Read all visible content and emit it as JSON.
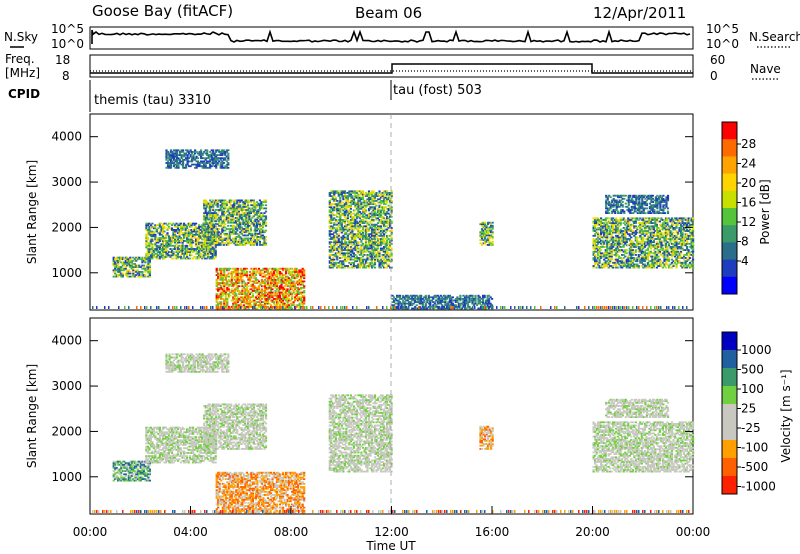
{
  "header": {
    "station": "Goose Bay (fitACF)",
    "beam": "Beam 06",
    "date": "12/Apr/2011"
  },
  "left_labels": {
    "nsky": "N.Sky",
    "freq_line1": "Freq.",
    "freq_line2": "[MHz]",
    "cpid": "CPID"
  },
  "right_labels": {
    "nsearch": "N.Search",
    "nave": "Nave"
  },
  "noise_ticks_left": [
    "10^5",
    "10^0"
  ],
  "noise_ticks_right": [
    "10^5",
    "10^0"
  ],
  "freq_ticks_left": [
    "18",
    "8"
  ],
  "nave_ticks_right": [
    "60",
    "0"
  ],
  "cpid_labels": [
    {
      "text": "themis (tau) 3310",
      "start_hour": 0
    },
    {
      "text": "tau (fost) 503",
      "start_hour": 12
    }
  ],
  "power_colorbar": {
    "label": "Power [dB]",
    "ticks": [
      "28",
      "24",
      "20",
      "16",
      "12",
      "8",
      "4"
    ],
    "colors": [
      "#ff0000",
      "#ff6a00",
      "#ffa300",
      "#ffd400",
      "#c8e000",
      "#55c43a",
      "#3a9a6a",
      "#2a6e8a",
      "#1e3cbe",
      "#0000ff"
    ]
  },
  "velocity_colorbar": {
    "label": "Velocity [m s⁻¹]",
    "ticks": [
      "1000",
      "500",
      "100",
      "25",
      "-25",
      "-100",
      "-500",
      "-1000"
    ],
    "colors": [
      "#0000c0",
      "#2060a0",
      "#3a9a6a",
      "#70d040",
      "#c8c8c0",
      "#c8c8c0",
      "#ffa000",
      "#ff6000",
      "#ff2000"
    ]
  },
  "chart_data": [
    {
      "type": "heatmap",
      "name": "power",
      "xlabel": "",
      "ylabel": "Slant Range [km]",
      "xlim": [
        0,
        24
      ],
      "ylim": [
        180,
        4500
      ],
      "yticks": [
        1000,
        2000,
        3000,
        4000
      ],
      "regions": [
        {
          "t0": 0.9,
          "t1": 2.4,
          "r0": 900,
          "r1": 1350,
          "level": "mid"
        },
        {
          "t0": 2.2,
          "t1": 5.0,
          "r0": 1300,
          "r1": 2100,
          "level": "mid"
        },
        {
          "t0": 3.0,
          "t1": 5.5,
          "r0": 3300,
          "r1": 3700,
          "level": "low"
        },
        {
          "t0": 4.5,
          "t1": 7.0,
          "r0": 1600,
          "r1": 2600,
          "level": "mid"
        },
        {
          "t0": 5.0,
          "t1": 8.5,
          "r0": 200,
          "r1": 1100,
          "level": "high"
        },
        {
          "t0": 9.5,
          "t1": 12.0,
          "r0": 1100,
          "r1": 2800,
          "level": "mid"
        },
        {
          "t0": 12.0,
          "t1": 16.0,
          "r0": 200,
          "r1": 500,
          "level": "low"
        },
        {
          "t0": 15.5,
          "t1": 16.0,
          "r0": 1600,
          "r1": 2100,
          "level": "mid"
        },
        {
          "t0": 20.0,
          "t1": 24.0,
          "r0": 1100,
          "r1": 2200,
          "level": "mid"
        },
        {
          "t0": 20.5,
          "t1": 23.0,
          "r0": 2300,
          "r1": 2700,
          "level": "low"
        }
      ]
    },
    {
      "type": "heatmap",
      "name": "velocity",
      "xlabel": "Time UT",
      "ylabel": "Slant Range [km]",
      "xlim": [
        0,
        24
      ],
      "ylim": [
        180,
        4500
      ],
      "xticks": [
        "00:00",
        "04:00",
        "08:00",
        "12:00",
        "16:00",
        "20:00",
        "00:00"
      ],
      "yticks": [
        1000,
        2000,
        3000,
        4000
      ],
      "regions": [
        {
          "t0": 0.9,
          "t1": 2.4,
          "r0": 900,
          "r1": 1350,
          "level": "pos"
        },
        {
          "t0": 2.2,
          "t1": 5.0,
          "r0": 1300,
          "r1": 2100,
          "level": "zero"
        },
        {
          "t0": 3.0,
          "t1": 5.5,
          "r0": 3300,
          "r1": 3700,
          "level": "zero"
        },
        {
          "t0": 4.5,
          "t1": 7.0,
          "r0": 1600,
          "r1": 2600,
          "level": "zero"
        },
        {
          "t0": 5.0,
          "t1": 8.5,
          "r0": 200,
          "r1": 1100,
          "level": "neg"
        },
        {
          "t0": 9.5,
          "t1": 12.0,
          "r0": 1100,
          "r1": 2800,
          "level": "zero"
        },
        {
          "t0": 15.5,
          "t1": 16.0,
          "r0": 1600,
          "r1": 2100,
          "level": "neg"
        },
        {
          "t0": 20.0,
          "t1": 24.0,
          "r0": 1100,
          "r1": 2200,
          "level": "zero"
        },
        {
          "t0": 20.5,
          "t1": 23.0,
          "r0": 2300,
          "r1": 2700,
          "level": "zero"
        }
      ]
    }
  ]
}
